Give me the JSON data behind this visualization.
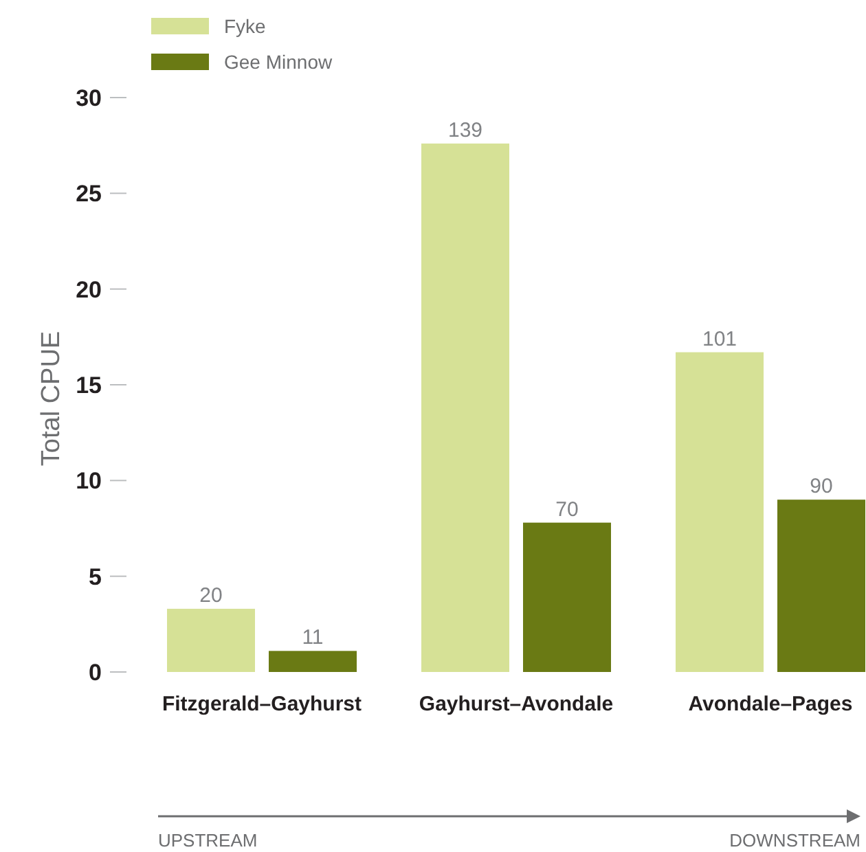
{
  "chart_data": {
    "type": "bar",
    "categories": [
      "Fitzgerald–Gayhurst",
      "Gayhurst–Avondale",
      "Avondale–Pages"
    ],
    "series": [
      {
        "name": "Fyke",
        "color": "#d6e196",
        "values": [
          3.3,
          27.6,
          16.7
        ]
      },
      {
        "name": "Gee Minnow",
        "color": "#6a7a14",
        "values": [
          1.1,
          7.8,
          9.0
        ]
      }
    ],
    "ylabel": "Total CPUE",
    "ylim": [
      0,
      30
    ],
    "yticks": [
      0,
      5,
      10,
      15,
      20,
      25,
      30
    ],
    "legend": "top left",
    "annotations": [
      {
        "text": "20",
        "y": 3.3
      },
      {
        "text": "11",
        "y": 1.1
      },
      {
        "text": "139",
        "y": 27.6
      },
      {
        "text": "70",
        "y": 7.8
      },
      {
        "text": "101",
        "y": 16.7
      },
      {
        "text": "90",
        "y": 9.0
      },
      "UPSTREAM",
      "DOWNSTREAM"
    ]
  }
}
